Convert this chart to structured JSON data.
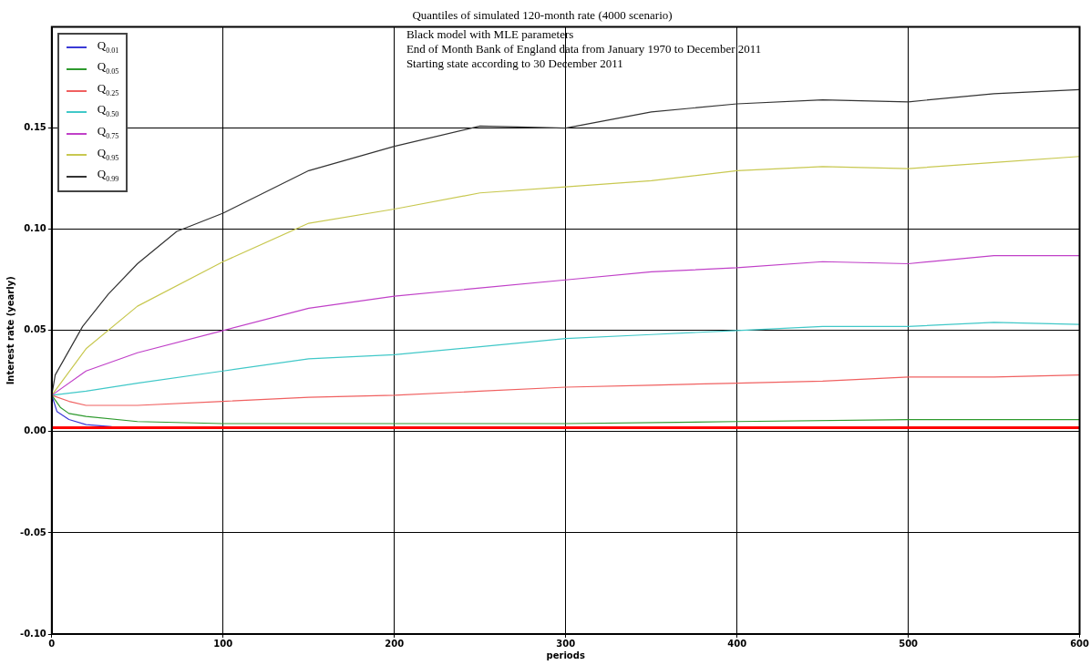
{
  "chart_data": {
    "type": "line",
    "title": "Quantiles of simulated 120-month rate (4000 scenario)",
    "annotations": [
      "Black model with MLE parameters",
      "End of Month Bank of England data from January 1970 to December 2011",
      "Starting state according to 30 December 2011"
    ],
    "xlabel": "periods",
    "ylabel": "Interest rate (yearly)",
    "xlim": [
      0,
      600
    ],
    "xticks": [
      0,
      100,
      200,
      300,
      400,
      500,
      600
    ],
    "ylim": [
      -0.1,
      0.2
    ],
    "yticks": [
      {
        "value": -0.1,
        "label": "-0.10"
      },
      {
        "value": -0.05,
        "label": "-0.05"
      },
      {
        "value": 0,
        "label": "0.00"
      },
      {
        "value": 0.05,
        "label": "0.05"
      },
      {
        "value": 0.1,
        "label": "0.10"
      },
      {
        "value": 0.15,
        "label": "0.15"
      }
    ],
    "grid": true,
    "legend": "top left",
    "marker": "none",
    "line_style": "solid",
    "ref_lines": [
      {
        "axis": "y",
        "value": 0.002,
        "color": "#ff0000"
      }
    ],
    "series": [
      {
        "name": "Q$_{0.01}$",
        "color": "#3a3ad6",
        "x": [
          0,
          3,
          10,
          20,
          35
        ],
        "values": [
          0.018,
          0.01,
          0.006,
          0.0035,
          0.0025
        ]
      },
      {
        "name": "Q$_{0.05}$",
        "color": "#2e9a2e",
        "x": [
          0,
          5,
          10,
          20,
          50,
          100,
          200,
          300,
          400,
          500,
          600
        ],
        "values": [
          0.018,
          0.012,
          0.009,
          0.0075,
          0.005,
          0.004,
          0.004,
          0.004,
          0.005,
          0.006,
          0.006
        ]
      },
      {
        "name": "Q$_{0.25}$",
        "color": "#f06060",
        "x": [
          0,
          10,
          20,
          50,
          100,
          150,
          200,
          250,
          300,
          350,
          400,
          450,
          500,
          550,
          600
        ],
        "values": [
          0.018,
          0.015,
          0.013,
          0.013,
          0.015,
          0.017,
          0.018,
          0.02,
          0.022,
          0.023,
          0.024,
          0.025,
          0.027,
          0.027,
          0.028
        ]
      },
      {
        "name": "Q$_{0.50}$",
        "color": "#40c8c8",
        "x": [
          0,
          20,
          50,
          100,
          150,
          200,
          250,
          300,
          350,
          400,
          450,
          500,
          550,
          600
        ],
        "values": [
          0.018,
          0.02,
          0.024,
          0.03,
          0.036,
          0.038,
          0.042,
          0.046,
          0.048,
          0.05,
          0.052,
          0.052,
          0.054,
          0.053
        ]
      },
      {
        "name": "Q$_{0.75}$",
        "color": "#c040c8",
        "x": [
          0,
          20,
          50,
          100,
          150,
          200,
          250,
          300,
          350,
          400,
          450,
          500,
          550,
          600
        ],
        "values": [
          0.018,
          0.03,
          0.039,
          0.05,
          0.061,
          0.067,
          0.071,
          0.075,
          0.079,
          0.081,
          0.084,
          0.083,
          0.087,
          0.087
        ]
      },
      {
        "name": "Q$_{0.95}$",
        "color": "#c8c850",
        "x": [
          0,
          20,
          50,
          100,
          150,
          200,
          250,
          300,
          350,
          400,
          450,
          500,
          550,
          600
        ],
        "values": [
          0.018,
          0.041,
          0.062,
          0.084,
          0.103,
          0.11,
          0.118,
          0.121,
          0.124,
          0.129,
          0.131,
          0.13,
          0.133,
          0.136
        ]
      },
      {
        "name": "Q$_{0.99}$",
        "color": "#333333",
        "x": [
          0,
          2,
          18,
          33,
          50,
          73,
          100,
          150,
          200,
          250,
          300,
          350,
          400,
          450,
          500,
          550,
          600
        ],
        "values": [
          0.018,
          0.028,
          0.052,
          0.068,
          0.083,
          0.099,
          0.108,
          0.129,
          0.141,
          0.151,
          0.15,
          0.158,
          0.162,
          0.164,
          0.163,
          0.167,
          0.169
        ]
      }
    ]
  }
}
